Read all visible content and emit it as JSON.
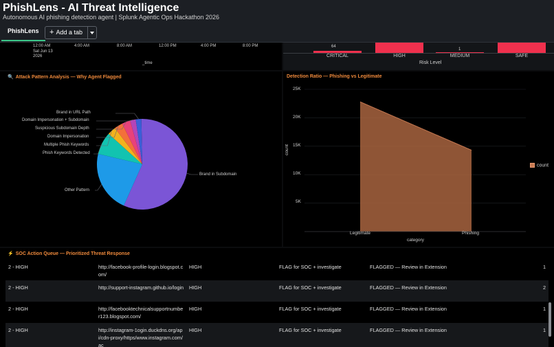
{
  "header": {
    "title": "PhishLens - AI Threat Intelligence",
    "subtitle": "Autonomous AI phishing detection agent | Splunk Agentic Ops Hackathon 2026",
    "tab_label": "PhishLens",
    "add_tab_label": "Add a tab"
  },
  "timeline": {
    "first_tick": [
      "12:00 AM",
      "Sat Jun 13",
      "2026"
    ],
    "ticks": [
      "4:00 AM",
      "8:00 AM",
      "12:00 PM",
      "4:00 PM",
      "8:00 PM"
    ],
    "xlabel": "_time"
  },
  "risk_chart": {
    "xlabel": "Risk Level",
    "categories": [
      "CRITICAL",
      "HIGH",
      "MEDIUM",
      "SAFE"
    ],
    "data_labels": [
      "64",
      "",
      "1",
      ""
    ],
    "bar_color": "#f0304d"
  },
  "attack_panel": {
    "title": "Attack Pattern Analysis — Why Agent Flagged",
    "icon": "search-icon"
  },
  "chart_data": [
    {
      "type": "pie",
      "title": "Attack Pattern Analysis — Why Agent Flagged",
      "categories": [
        "Brand in Subdomain",
        "Other Pattern",
        "Phish Keywords Detected",
        "Multiple Phish Keywords",
        "Domain Impersonation",
        "Suspicious Subdomain Depth",
        "Domain Impersonation + Subdomain",
        "Brand in URL Path"
      ],
      "values": [
        57,
        22,
        8,
        3,
        3,
        3,
        2,
        2
      ],
      "colors": [
        "#7b55d6",
        "#1e9ae8",
        "#12c3b0",
        "#f3b21d",
        "#f3703a",
        "#e8427a",
        "#b445b8",
        "#3b5fd6"
      ]
    },
    {
      "type": "area",
      "title": "Detection Ratio — Phishing vs Legitimate",
      "categories": [
        "Legitimate",
        "Phishing"
      ],
      "series": [
        {
          "name": "count",
          "values": [
            22800,
            14300
          ]
        }
      ],
      "xlabel": "category",
      "ylabel": "count",
      "ylim": [
        0,
        25000
      ],
      "yticks": [
        "5K",
        "10K",
        "15K",
        "20K",
        "25K"
      ],
      "color": "#a8643f"
    }
  ],
  "ratio_panel": {
    "title": "Detection Ratio — Phishing vs Legitimate",
    "legend_label": "count"
  },
  "soc_panel": {
    "title": "SOC Action Queue — Prioritized Threat Response",
    "icon": "lightning-icon",
    "rows": [
      {
        "priority": "2 - HIGH",
        "url": "http://facebook-profile-login.blogspot.com/",
        "severity": "HIGH",
        "action": "FLAG for SOC + investigate",
        "status": "FLAGGED — Review in Extension",
        "count": "1"
      },
      {
        "priority": "2 - HIGH",
        "url": "http://support-instagram.github.io/login",
        "severity": "HIGH",
        "action": "FLAG for SOC + investigate",
        "status": "FLAGGED — Review in Extension",
        "count": "2"
      },
      {
        "priority": "2 - HIGH",
        "url": "http://facebooktechnicalsupportnumber123.blogspot.com/",
        "severity": "HIGH",
        "action": "FLAG for SOC + investigate",
        "status": "FLAGGED — Review in Extension",
        "count": "1"
      },
      {
        "priority": "2 - HIGH",
        "url": "http://instagram-1ogin.duckdns.org/api/cdn-proxy/https/www.instagram.com/ac",
        "severity": "HIGH",
        "action": "FLAG for SOC + investigate",
        "status": "FLAGGED — Review in Extension",
        "count": "1"
      }
    ]
  }
}
